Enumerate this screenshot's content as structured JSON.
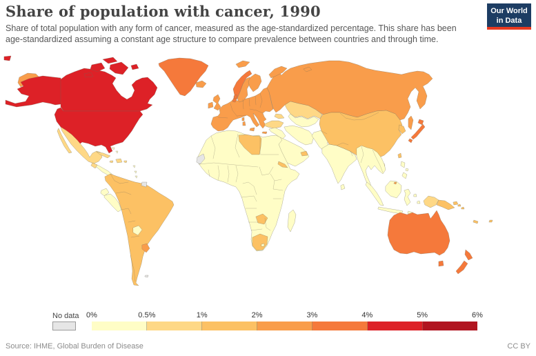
{
  "header": {
    "title": "Share of population with cancer, 1990",
    "subtitle_lines": [
      "Share of total population with any form of cancer, measured as the age-standardized percentage. This share has been",
      "age-standardized assuming a constant age structure to compare prevalence between countries and through time."
    ]
  },
  "logo": {
    "line1": "Our World",
    "line2": "in Data",
    "bg_color": "#1d3d63",
    "accent_color": "#e8391f"
  },
  "legend": {
    "no_data_label": "No data",
    "no_data_color": "#e6e6e6",
    "tick_labels": [
      "0%",
      "0.5%",
      "1%",
      "2%",
      "3%",
      "4%",
      "5%",
      "6%"
    ],
    "bins": [
      {
        "label": "0-0.5%",
        "color": "#fffdc6"
      },
      {
        "label": "0.5-1%",
        "color": "#fed886"
      },
      {
        "label": "1-2%",
        "color": "#fcc164"
      },
      {
        "label": "2-3%",
        "color": "#f99d4b"
      },
      {
        "label": "3-4%",
        "color": "#f5793b"
      },
      {
        "label": "4-5%",
        "color": "#dd2127"
      },
      {
        "label": "5-6%",
        "color": "#b11520"
      }
    ]
  },
  "footer": {
    "source": "Source: IHME, Global Burden of Disease",
    "license": "CC BY"
  },
  "chart_data": {
    "type": "heatmap",
    "subtype": "choropleth-world-map",
    "title": "Share of population with cancer, 1990",
    "unit": "% of population (age-standardized)",
    "year": 1990,
    "legend_stops_percent": [
      0,
      0.5,
      1,
      2,
      3,
      4,
      5,
      6
    ],
    "regions": [
      {
        "id": "united-states",
        "name": "United States",
        "category": "4-5%"
      },
      {
        "id": "canada",
        "name": "Canada",
        "category": "4-5%"
      },
      {
        "id": "greenland",
        "name": "Greenland",
        "category": "3-4%"
      },
      {
        "id": "iceland",
        "name": "Iceland",
        "category": "2-3%"
      },
      {
        "id": "mexico",
        "name": "Mexico",
        "category": "0.5-1%"
      },
      {
        "id": "guatemala",
        "name": "Guatemala",
        "category": "0.5-1%"
      },
      {
        "id": "central-america",
        "name": "Central America",
        "category": "0-0.5%"
      },
      {
        "id": "cuba",
        "name": "Cuba",
        "category": "0.5-1%"
      },
      {
        "id": "hispaniola",
        "name": "Hispaniola",
        "category": "0.5-1%"
      },
      {
        "id": "jamaica",
        "name": "Jamaica",
        "category": "0.5-1%"
      },
      {
        "id": "puerto-rico",
        "name": "Puerto Rico",
        "category": "0.5-1%"
      },
      {
        "id": "caribbean-islands",
        "name": "Lesser Antilles & Bahamas",
        "category": "0-0.5%"
      },
      {
        "id": "south-america-main",
        "name": "South America (most countries)",
        "category": "1-2%"
      },
      {
        "id": "peru",
        "name": "Peru",
        "category": "0-0.5%"
      },
      {
        "id": "ecuador",
        "name": "Ecuador",
        "category": "0-0.5%"
      },
      {
        "id": "paraguay",
        "name": "Paraguay",
        "category": "0-0.5%"
      },
      {
        "id": "uruguay",
        "name": "Uruguay",
        "category": "2-3%"
      },
      {
        "id": "french-guiana",
        "name": "French Guiana",
        "category": "No data"
      },
      {
        "id": "falkland-islands",
        "name": "Falkland Islands",
        "category": "No data"
      },
      {
        "id": "europe",
        "name": "Europe (most countries)",
        "category": "2-3%"
      },
      {
        "id": "united-kingdom",
        "name": "United Kingdom",
        "category": "2-3%"
      },
      {
        "id": "ireland",
        "name": "Ireland",
        "category": "2-3%"
      },
      {
        "id": "norway",
        "name": "Norway",
        "category": "3-4%"
      },
      {
        "id": "sweden",
        "name": "Sweden",
        "category": "2-3%"
      },
      {
        "id": "finland",
        "name": "Finland",
        "category": "2-3%"
      },
      {
        "id": "denmark",
        "name": "Denmark",
        "category": "3-4%"
      },
      {
        "id": "svalbard",
        "name": "Svalbard",
        "category": "2-3%"
      },
      {
        "id": "russia",
        "name": "Russia",
        "category": "2-3%"
      },
      {
        "id": "kazakhstan",
        "name": "Kazakhstan",
        "category": "0.5-1%"
      },
      {
        "id": "central-asia",
        "name": "Central Asia",
        "category": "0-0.5%"
      },
      {
        "id": "caucasus",
        "name": "Caucasus",
        "category": "0.5-1%"
      },
      {
        "id": "turkey",
        "name": "Turkey",
        "category": "0.5-1%"
      },
      {
        "id": "iran",
        "name": "Iran",
        "category": "0-0.5%"
      },
      {
        "id": "levant",
        "name": "Iraq, Syria & Levant",
        "category": "0-0.5%"
      },
      {
        "id": "arabia",
        "name": "Arabian Peninsula",
        "category": "0-0.5%"
      },
      {
        "id": "uae",
        "name": "United Arab Emirates",
        "category": "1-2%"
      },
      {
        "id": "afghanistan-pakistan",
        "name": "Afghanistan & Pakistan",
        "category": "0-0.5%"
      },
      {
        "id": "india",
        "name": "India",
        "category": "0-0.5%"
      },
      {
        "id": "sri-lanka",
        "name": "Sri Lanka",
        "category": "0-0.5%"
      },
      {
        "id": "china",
        "name": "China",
        "category": "1-2%"
      },
      {
        "id": "mongolia",
        "name": "Mongolia",
        "category": "1-2%"
      },
      {
        "id": "korea",
        "name": "Korea",
        "category": "1-2%"
      },
      {
        "id": "taiwan",
        "name": "Taiwan",
        "category": "1-2%"
      },
      {
        "id": "japan",
        "name": "Japan",
        "category": "3-4%"
      },
      {
        "id": "southeast-asia",
        "name": "Mainland Southeast Asia",
        "category": "0-0.5%"
      },
      {
        "id": "philippines",
        "name": "Philippines",
        "category": "0-0.5%"
      },
      {
        "id": "indonesia",
        "name": "Indonesia",
        "category": "0-0.5%"
      },
      {
        "id": "brunei",
        "name": "Brunei",
        "category": "2-3%"
      },
      {
        "id": "west-papua",
        "name": "Western New Guinea",
        "category": "0.5-1%"
      },
      {
        "id": "papua-new-guinea",
        "name": "Papua New Guinea",
        "category": "1-2%"
      },
      {
        "id": "solomon-islands",
        "name": "Solomon Islands",
        "category": "1-2%"
      },
      {
        "id": "new-caledonia",
        "name": "New Caledonia",
        "category": "1-2%"
      },
      {
        "id": "fiji",
        "name": "Fiji",
        "category": "1-2%"
      },
      {
        "id": "australia",
        "name": "Australia",
        "category": "3-4%"
      },
      {
        "id": "new-zealand",
        "name": "New Zealand",
        "category": "3-4%"
      },
      {
        "id": "africa-main",
        "name": "Africa (most countries)",
        "category": "0-0.5%"
      },
      {
        "id": "libya",
        "name": "Libya",
        "category": "1-2%"
      },
      {
        "id": "south-africa",
        "name": "South Africa",
        "category": "1-2%"
      },
      {
        "id": "lesotho",
        "name": "Lesotho",
        "category": "0-0.5%"
      },
      {
        "id": "zambia",
        "name": "Zambia",
        "category": "1-2%"
      },
      {
        "id": "eritrea",
        "name": "Eritrea",
        "category": "1-2%"
      },
      {
        "id": "madagascar",
        "name": "Madagascar",
        "category": "0-0.5%"
      },
      {
        "id": "western-sahara",
        "name": "Western Sahara",
        "category": "No data"
      }
    ]
  }
}
